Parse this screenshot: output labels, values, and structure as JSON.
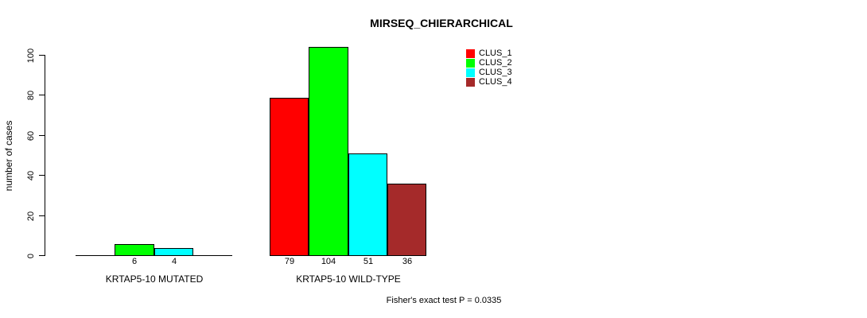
{
  "title": "MIRSEQ_CHIERARCHICAL",
  "footer": "Fisher's exact test P = 0.0335",
  "chart_data": {
    "type": "bar",
    "title": "MIRSEQ_CHIERARCHICAL",
    "ylabel": "number of cases",
    "xlabel": "",
    "ylim": [
      0,
      100
    ],
    "yticks": [
      0,
      20,
      40,
      60,
      80,
      100
    ],
    "grid": false,
    "legend_position": "top-right",
    "categories": [
      "KRTAP5-10 MUTATED",
      "KRTAP5-10 WILD-TYPE"
    ],
    "series": [
      {
        "name": "CLUS_1",
        "color": "#FF0000",
        "values": [
          0,
          79
        ]
      },
      {
        "name": "CLUS_2",
        "color": "#00FF00",
        "values": [
          6,
          104
        ]
      },
      {
        "name": "CLUS_3",
        "color": "#00FFFF",
        "values": [
          4,
          51
        ]
      },
      {
        "name": "CLUS_4",
        "color": "#A52A2A",
        "values": [
          0,
          36
        ]
      }
    ],
    "bar_value_labels": [
      [
        "",
        "6",
        "4",
        ""
      ],
      [
        "79",
        "104",
        "51",
        "36"
      ]
    ],
    "annotation": "Fisher's exact test P = 0.0335",
    "colors": {
      "axis": "#000000",
      "bar_border": "#000000",
      "text": "#000000",
      "background": "#FFFFFF"
    }
  }
}
